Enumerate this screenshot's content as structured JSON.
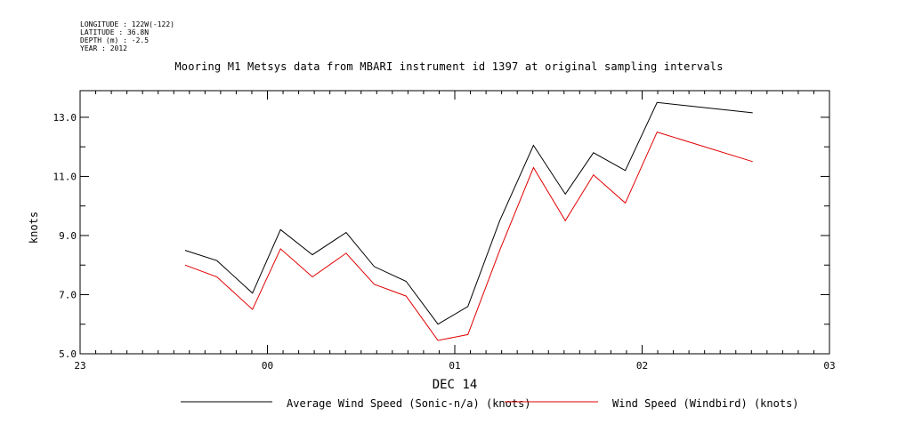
{
  "meta": {
    "longitude": "LONGITUDE : 122W(-122)",
    "latitude": "LATITUDE : 36.8N",
    "depth": "DEPTH (m) : -2.5",
    "year": "YEAR : 2012"
  },
  "chart_data": {
    "type": "line",
    "title": "Mooring M1 Metsys data from MBARI instrument id 1397 at original sampling intervals",
    "xlabel": "DEC 14",
    "ylabel": "knots",
    "xlim": [
      23.0,
      27.0
    ],
    "ylim": [
      5.0,
      13.9
    ],
    "x_ticks": [
      {
        "value": 23,
        "label": "23"
      },
      {
        "value": 24,
        "label": "00"
      },
      {
        "value": 25,
        "label": "01"
      },
      {
        "value": 26,
        "label": "02"
      },
      {
        "value": 27,
        "label": "03"
      }
    ],
    "y_ticks": [
      {
        "value": 5,
        "label": "5.0"
      },
      {
        "value": 7,
        "label": "7.0"
      },
      {
        "value": 9,
        "label": "9.0"
      },
      {
        "value": 11,
        "label": "11.0"
      },
      {
        "value": 13,
        "label": "13.0"
      }
    ],
    "grid": false,
    "legend_position": "bottom",
    "series": [
      {
        "name": "Average Wind Speed (Sonic-n/a) (knots)",
        "color": "#000000",
        "x": [
          23.56,
          23.73,
          23.92,
          24.07,
          24.24,
          24.42,
          24.57,
          24.74,
          24.91,
          25.07,
          25.24,
          25.42,
          25.59,
          25.74,
          25.91,
          26.08,
          26.59
        ],
        "y": [
          8.5,
          8.15,
          7.05,
          9.2,
          8.35,
          9.1,
          7.95,
          7.45,
          6.0,
          6.6,
          9.5,
          12.05,
          10.4,
          11.8,
          11.2,
          13.5,
          13.15
        ]
      },
      {
        "name": "Wind Speed (Windbird) (knots)",
        "color": "#e00000",
        "x": [
          23.56,
          23.73,
          23.92,
          24.07,
          24.24,
          24.42,
          24.57,
          24.74,
          24.91,
          25.07,
          25.24,
          25.42,
          25.59,
          25.74,
          25.91,
          26.08,
          26.59
        ],
        "y": [
          8.0,
          7.6,
          6.5,
          8.55,
          7.6,
          8.4,
          7.35,
          6.95,
          5.45,
          5.65,
          8.5,
          11.3,
          9.5,
          11.05,
          10.1,
          12.5,
          11.5
        ]
      }
    ]
  }
}
